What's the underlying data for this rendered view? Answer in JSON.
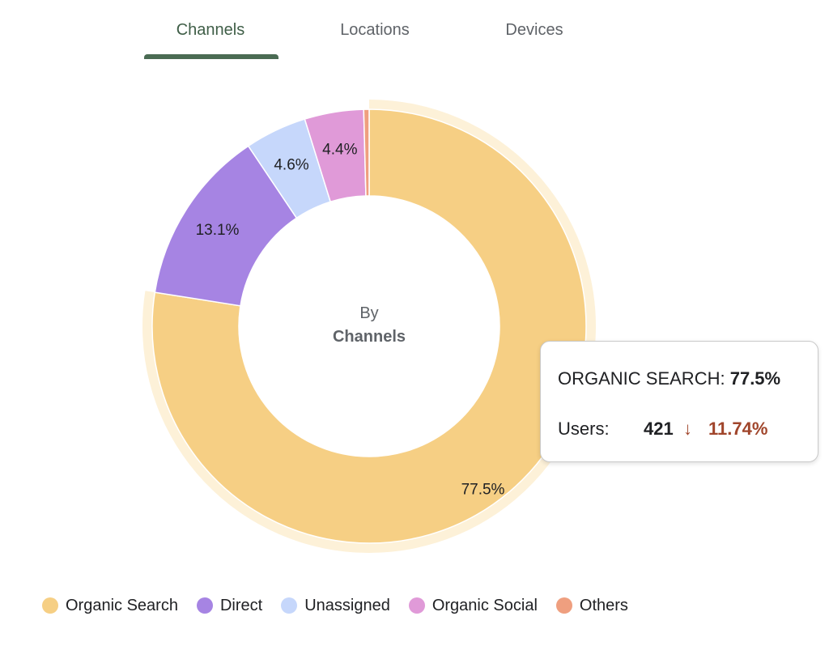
{
  "tabs": [
    {
      "label": "Channels",
      "active": true
    },
    {
      "label": "Locations",
      "active": false
    },
    {
      "label": "Devices",
      "active": false
    }
  ],
  "center": {
    "line1": "By",
    "line2": "Channels"
  },
  "tooltip": {
    "category": "ORGANIC SEARCH:",
    "percent": "77.5%",
    "metric_label": "Users:",
    "metric_value": "421",
    "change_icon": "arrow-down-icon",
    "change": "11.74%"
  },
  "chart_data": {
    "type": "pie",
    "variant": "donut",
    "categories": [
      "Organic Search",
      "Direct",
      "Unassigned",
      "Organic Social",
      "Others"
    ],
    "values": [
      77.5,
      13.1,
      4.6,
      4.4,
      0.4
    ],
    "labels": [
      "77.5%",
      "13.1%",
      "4.6%",
      "4.4%",
      ""
    ],
    "colors": [
      "#f6cf84",
      "#a684e3",
      "#c6d7fb",
      "#e09ad8",
      "#ef9f7f"
    ],
    "highlighted": "Organic Search",
    "legend_position": "bottom"
  }
}
